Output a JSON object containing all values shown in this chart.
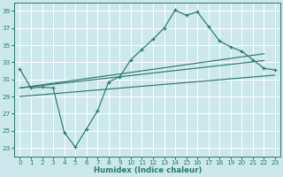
{
  "xlabel": "Humidex (Indice chaleur)",
  "background_color": "#cce8ec",
  "grid_color": "#ffffff",
  "line_color": "#2a7a6a",
  "xlim": [
    -0.5,
    23.5
  ],
  "ylim": [
    22,
    40
  ],
  "x_ticks": [
    0,
    1,
    2,
    3,
    4,
    5,
    6,
    7,
    8,
    9,
    10,
    11,
    12,
    13,
    14,
    15,
    16,
    17,
    18,
    19,
    20,
    21,
    22,
    23
  ],
  "y_ticks": [
    23,
    25,
    27,
    29,
    31,
    33,
    35,
    37,
    39
  ],
  "main_x": [
    0,
    1,
    2,
    3,
    4,
    5,
    6,
    7,
    8,
    9,
    10,
    11,
    12,
    13,
    14,
    15,
    16,
    17,
    18,
    19,
    20,
    21,
    22,
    23
  ],
  "main_y": [
    32.2,
    30.0,
    30.1,
    30.0,
    24.8,
    23.1,
    25.2,
    27.3,
    30.7,
    31.3,
    33.3,
    34.5,
    35.7,
    37.0,
    39.1,
    38.5,
    38.9,
    37.2,
    35.5,
    34.8,
    34.3,
    33.3,
    32.3,
    32.1
  ],
  "line1_x": [
    0,
    22
  ],
  "line1_y": [
    30.0,
    34.0
  ],
  "line2_x": [
    0,
    22
  ],
  "line2_y": [
    30.0,
    33.2
  ],
  "line3_x": [
    0,
    23
  ],
  "line3_y": [
    29.0,
    31.5
  ]
}
